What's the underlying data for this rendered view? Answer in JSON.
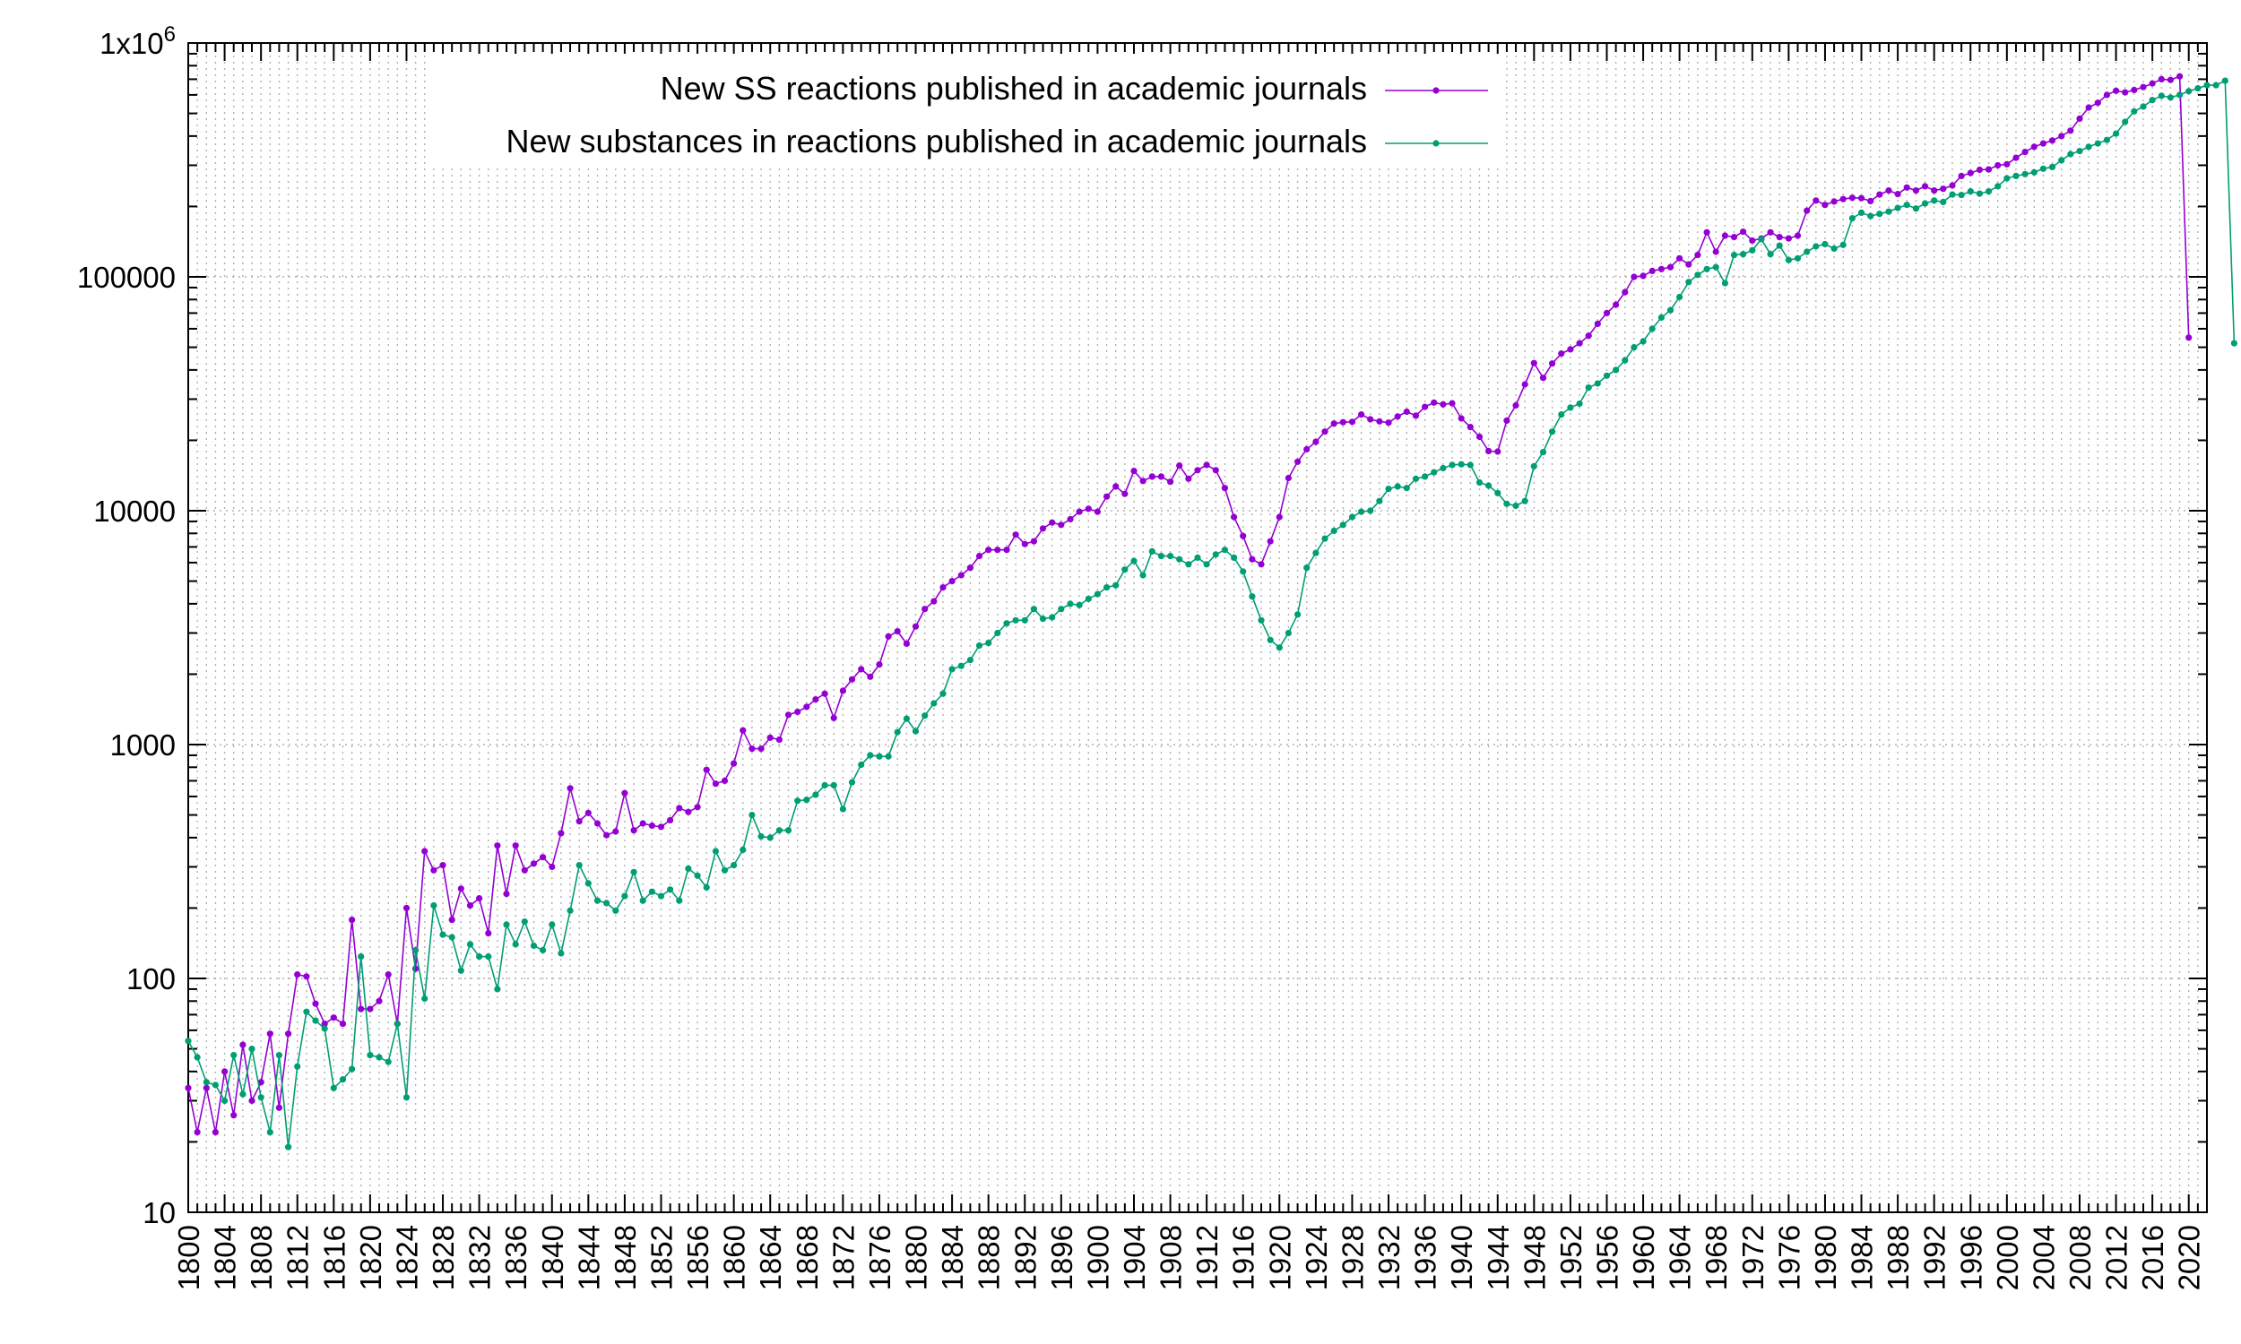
{
  "chart_data": {
    "type": "line",
    "title": "",
    "xlabel": "",
    "ylabel": "",
    "y_scale": "log",
    "xlim": [
      1800,
      2022
    ],
    "ylim": [
      10,
      1000000
    ],
    "grid": true,
    "legend_position": "top-right",
    "y_ticks": [
      {
        "value": 10,
        "label": "10"
      },
      {
        "value": 100,
        "label": "100"
      },
      {
        "value": 1000,
        "label": "1000"
      },
      {
        "value": 10000,
        "label": "10000"
      },
      {
        "value": 100000,
        "label": "100000"
      },
      {
        "value": 1000000,
        "label": "1x10",
        "sup": "6"
      }
    ],
    "x_tick_step": 4,
    "x_tick_start": 1800,
    "x_tick_end": 2020,
    "x_start_year": 1800,
    "series": [
      {
        "name": "New SS reactions published in academic journals",
        "color": "#9400d3",
        "values": [
          34,
          22,
          34,
          22,
          40,
          26,
          52,
          30,
          36,
          58,
          28,
          58,
          104,
          102,
          78,
          64,
          68,
          64,
          178,
          74,
          74,
          80,
          104,
          64,
          200,
          110,
          350,
          290,
          305,
          178,
          242,
          205,
          220,
          156,
          370,
          230,
          370,
          290,
          310,
          330,
          300,
          418,
          650,
          470,
          510,
          460,
          410,
          425,
          620,
          430,
          460,
          450,
          445,
          475,
          535,
          515,
          540,
          780,
          680,
          700,
          830,
          1150,
          960,
          960,
          1070,
          1050,
          1340,
          1380,
          1450,
          1560,
          1650,
          1300,
          1700,
          1900,
          2100,
          1950,
          2200,
          2900,
          3050,
          2700,
          3200,
          3800,
          4100,
          4700,
          5000,
          5300,
          5700,
          6400,
          6800,
          6800,
          6800,
          7900,
          7200,
          7400,
          8400,
          8900,
          8700,
          9200,
          9900,
          10200,
          9900,
          11500,
          12700,
          11800,
          14800,
          13400,
          14000,
          14000,
          13300,
          15600,
          13700,
          14900,
          15700,
          14900,
          12500,
          9400,
          7800,
          6200,
          5900,
          7400,
          9400,
          13800,
          16200,
          18300,
          19700,
          21800,
          23600,
          23900,
          24000,
          25800,
          24600,
          24100,
          23800,
          25300,
          26500,
          25500,
          27800,
          29000,
          28500,
          28800,
          24800,
          22800,
          20700,
          18000,
          17900,
          24300,
          28200,
          34700,
          42800,
          37000,
          42600,
          47000,
          49000,
          52000,
          56000,
          63000,
          70000,
          76000,
          86000,
          100000,
          101000,
          106000,
          108000,
          110000,
          120000,
          113000,
          124000,
          155000,
          128000,
          150000,
          148000,
          156000,
          143000,
          146000,
          155000,
          148000,
          146000,
          150000,
          192000,
          212000,
          203000,
          210000,
          215000,
          218000,
          217000,
          211000,
          225000,
          234000,
          226000,
          241000,
          234000,
          244000,
          234000,
          238000,
          246000,
          270000,
          278000,
          287000,
          288000,
          300000,
          303000,
          323000,
          342000,
          360000,
          372000,
          383000,
          400000,
          422000,
          475000,
          530000,
          555000,
          600000,
          625000,
          615000,
          630000,
          648000,
          672000,
          700000,
          695000,
          720000,
          55000
        ]
      },
      {
        "name": "New substances in reactions published in academic journals",
        "color": "#009e73",
        "values": [
          54,
          46,
          36,
          35,
          30,
          47,
          32,
          50,
          31,
          22,
          47,
          19,
          42,
          72,
          66,
          61,
          34,
          37,
          41,
          124,
          47,
          46,
          44,
          64,
          31,
          132,
          82,
          205,
          154,
          150,
          108,
          140,
          124,
          124,
          90,
          170,
          140,
          175,
          138,
          132,
          170,
          128,
          195,
          305,
          255,
          215,
          210,
          195,
          225,
          285,
          215,
          235,
          225,
          240,
          215,
          295,
          275,
          245,
          350,
          290,
          305,
          355,
          500,
          405,
          400,
          430,
          430,
          575,
          580,
          610,
          670,
          670,
          530,
          690,
          820,
          900,
          890,
          890,
          1130,
          1290,
          1140,
          1330,
          1500,
          1650,
          2100,
          2170,
          2300,
          2650,
          2720,
          3000,
          3300,
          3400,
          3400,
          3800,
          3450,
          3500,
          3800,
          4000,
          3950,
          4200,
          4400,
          4700,
          4800,
          5600,
          6100,
          5300,
          6700,
          6400,
          6400,
          6200,
          5900,
          6300,
          5900,
          6500,
          6800,
          6300,
          5500,
          4300,
          3400,
          2800,
          2600,
          3000,
          3600,
          5700,
          6600,
          7600,
          8200,
          8700,
          9400,
          9900,
          10000,
          11000,
          12400,
          12700,
          12500,
          13700,
          14000,
          14600,
          15200,
          15700,
          15800,
          15700,
          13200,
          12800,
          11900,
          10700,
          10500,
          11000,
          15500,
          17800,
          21800,
          25800,
          27600,
          28700,
          33600,
          35000,
          37800,
          40000,
          44000,
          50000,
          53000,
          60000,
          67000,
          72000,
          82000,
          95000,
          102000,
          108000,
          110000,
          94000,
          124000,
          125000,
          130000,
          145000,
          125000,
          136000,
          118000,
          120000,
          128000,
          135000,
          138000,
          132000,
          137000,
          178000,
          188000,
          182000,
          186000,
          190000,
          197000,
          203000,
          196000,
          206000,
          212000,
          209000,
          225000,
          224000,
          232000,
          227000,
          232000,
          244000,
          264000,
          270000,
          275000,
          280000,
          290000,
          295000,
          315000,
          335000,
          345000,
          360000,
          372000,
          385000,
          410000,
          460000,
          510000,
          535000,
          570000,
          595000,
          585000,
          600000,
          622000,
          640000,
          660000,
          660000,
          690000,
          52000
        ]
      }
    ]
  }
}
